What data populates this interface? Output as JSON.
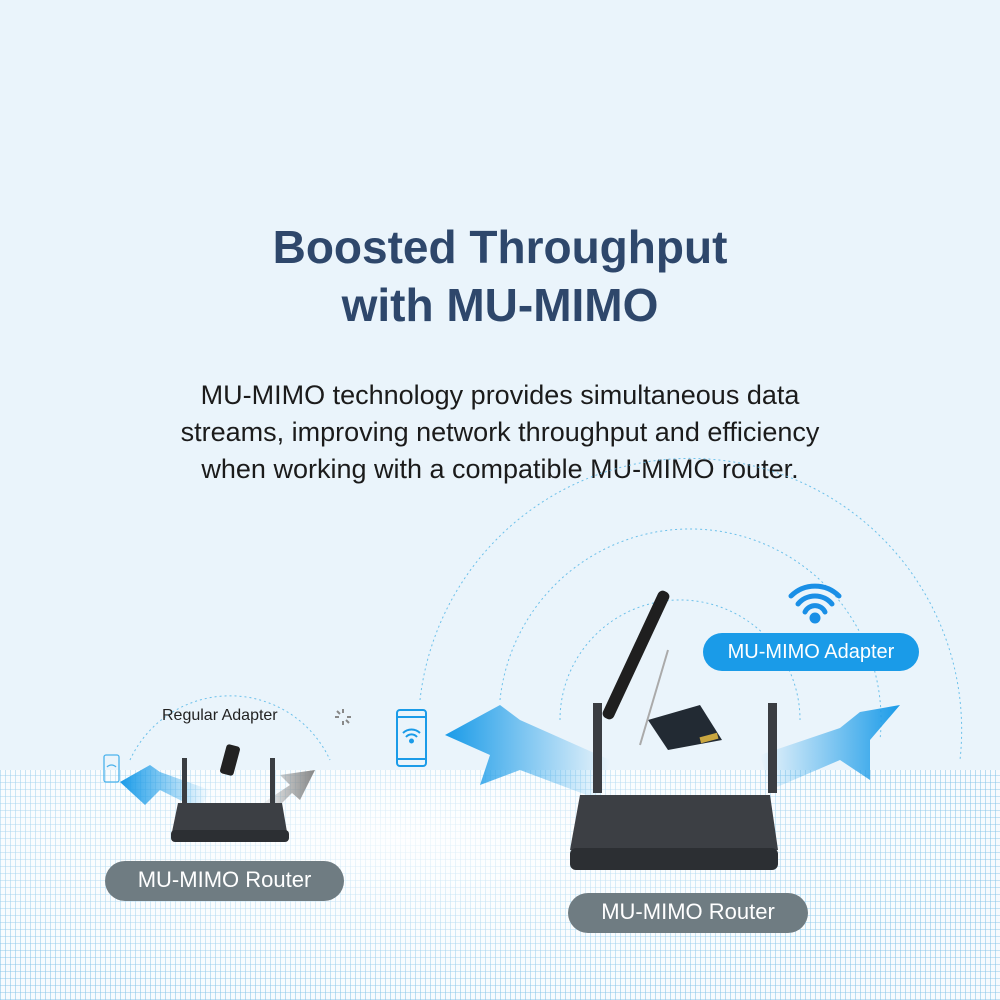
{
  "headline": {
    "line1": "Boosted Throughput",
    "line2": "with MU-MIMO"
  },
  "description": {
    "line1": "MU-MIMO technology provides simultaneous data",
    "line2": "streams, improving network throughput and efficiency",
    "line3": "when working with a compatible MU-MIMO router."
  },
  "diagram": {
    "regular_adapter_label": "Regular Adapter",
    "mu_mimo_adapter_label": "MU-MIMO Adapter",
    "small_router_label": "MU-MIMO Router",
    "large_router_label": "MU-MIMO Router",
    "icons": [
      "wifi-icon",
      "phone-icon",
      "loading-spinner-icon",
      "router",
      "pcie-adapter",
      "usb-adapter",
      "arrow"
    ]
  },
  "colors": {
    "title": "#2e476b",
    "accent_blue": "#1a9be8",
    "router_pill": "#6f7c82",
    "background": "#eaf4fb"
  }
}
